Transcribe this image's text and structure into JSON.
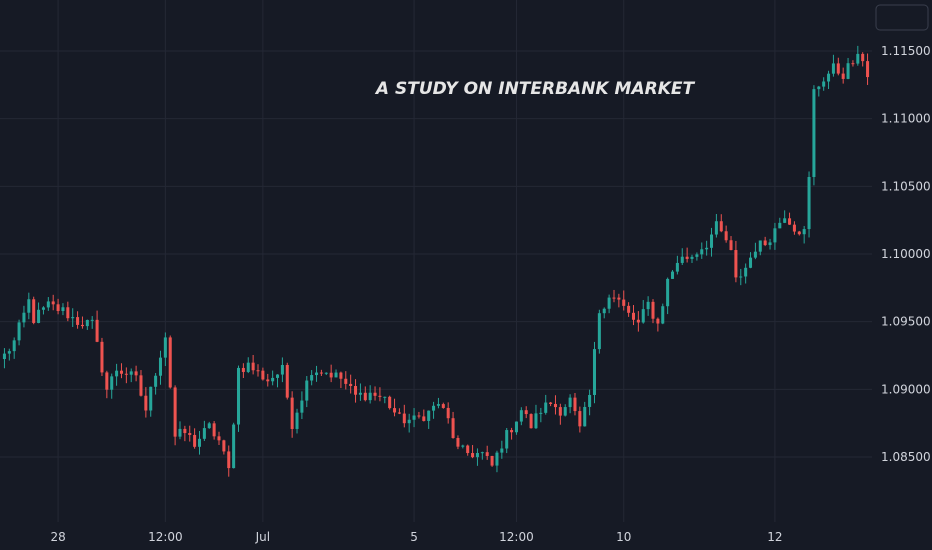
{
  "chart_data": {
    "type": "candlestick",
    "title": "A STUDY ON INTERBANK MARKET",
    "y_ticks": [
      "1.11500",
      "1.11000",
      "1.10500",
      "1.10000",
      "1.09500",
      "1.09000",
      "1.08500"
    ],
    "y_tick_values": [
      1.115,
      1.11,
      1.105,
      1.1,
      1.095,
      1.09,
      1.085
    ],
    "x_ticks": [
      "28",
      "12:00",
      "Jul",
      "5",
      "12:00",
      "10",
      "12"
    ],
    "x_tick_index": [
      11,
      33,
      53,
      84,
      105,
      127,
      158
    ],
    "ylim": [
      1.0815,
      1.1175
    ],
    "grid": true,
    "colors": {
      "up": "#26a69a",
      "down": "#ef5350",
      "background": "#161a25"
    },
    "path": [
      [
        0,
        1.0925
      ],
      [
        2,
        1.0935
      ],
      [
        5,
        1.0965
      ],
      [
        6,
        1.0952
      ],
      [
        9,
        1.0962
      ],
      [
        12,
        1.0958
      ],
      [
        15,
        1.095
      ],
      [
        18,
        1.0948
      ],
      [
        19,
        1.0932
      ],
      [
        21,
        1.09
      ],
      [
        23,
        1.0915
      ],
      [
        25,
        1.0912
      ],
      [
        27,
        1.0907
      ],
      [
        29,
        1.0885
      ],
      [
        31,
        1.0913
      ],
      [
        33,
        1.094
      ],
      [
        35,
        1.0865
      ],
      [
        37,
        1.0868
      ],
      [
        39,
        1.086
      ],
      [
        42,
        1.0872
      ],
      [
        44,
        1.0862
      ],
      [
        46,
        1.084
      ],
      [
        48,
        1.0915
      ],
      [
        50,
        1.0918
      ],
      [
        52,
        1.0912
      ],
      [
        54,
        1.0907
      ],
      [
        57,
        1.0914
      ],
      [
        59,
        1.0875
      ],
      [
        61,
        1.0895
      ],
      [
        63,
        1.0915
      ],
      [
        66,
        1.0913
      ],
      [
        69,
        1.0908
      ],
      [
        72,
        1.0895
      ],
      [
        75,
        1.0897
      ],
      [
        78,
        1.0893
      ],
      [
        81,
        1.0878
      ],
      [
        84,
        1.0877
      ],
      [
        87,
        1.0883
      ],
      [
        89,
        1.089
      ],
      [
        91,
        1.0877
      ],
      [
        93,
        1.0855
      ],
      [
        95,
        1.0853
      ],
      [
        98,
        1.0852
      ],
      [
        100,
        1.0843
      ],
      [
        102,
        1.086
      ],
      [
        104,
        1.0872
      ],
      [
        106,
        1.0885
      ],
      [
        108,
        1.0873
      ],
      [
        110,
        1.0885
      ],
      [
        112,
        1.089
      ],
      [
        114,
        1.0885
      ],
      [
        116,
        1.0892
      ],
      [
        118,
        1.087
      ],
      [
        120,
        1.0895
      ],
      [
        122,
        1.0958
      ],
      [
        124,
        1.097
      ],
      [
        126,
        1.0965
      ],
      [
        128,
        1.0955
      ],
      [
        130,
        1.0948
      ],
      [
        132,
        1.0963
      ],
      [
        134,
        1.0948
      ],
      [
        136,
        1.098
      ],
      [
        138,
        1.0995
      ],
      [
        141,
        1.0999
      ],
      [
        144,
        1.1008
      ],
      [
        146,
        1.102
      ],
      [
        148,
        1.101
      ],
      [
        149,
        1.1
      ],
      [
        150,
        1.098
      ],
      [
        152,
        1.099
      ],
      [
        154,
        1.1005
      ],
      [
        156,
        1.1008
      ],
      [
        158,
        1.1018
      ],
      [
        160,
        1.103
      ],
      [
        162,
        1.102
      ],
      [
        164,
        1.1016
      ],
      [
        165,
        1.1055
      ],
      [
        166,
        1.112
      ],
      [
        168,
        1.113
      ],
      [
        170,
        1.1137
      ],
      [
        172,
        1.1133
      ],
      [
        174,
        1.1142
      ],
      [
        176,
        1.1145
      ],
      [
        177,
        1.1133
      ]
    ]
  }
}
